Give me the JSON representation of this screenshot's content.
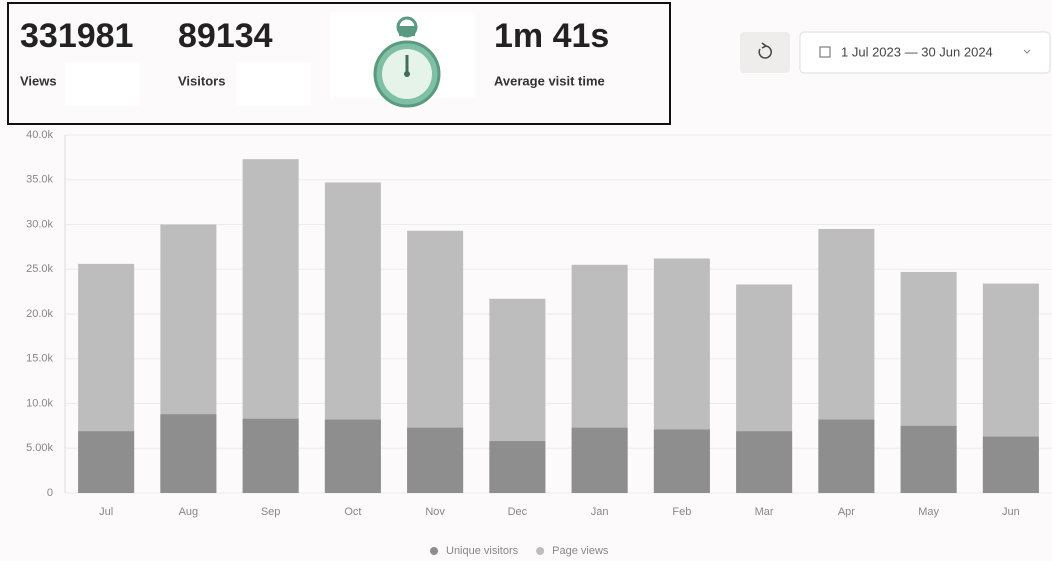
{
  "stats": [
    {
      "value": "331981",
      "label": "Views"
    },
    {
      "value": "89134",
      "label": "Visitors"
    },
    {
      "value": "1m 41s",
      "label": "Average visit time"
    }
  ],
  "date_range": "1 Jul 2023 — 30 Jun 2024",
  "chart_data": {
    "type": "bar",
    "categories": [
      "Jul",
      "Aug",
      "Sep",
      "Oct",
      "Nov",
      "Dec",
      "Jan",
      "Feb",
      "Mar",
      "Apr",
      "May",
      "Jun"
    ],
    "series": [
      {
        "name": "Unique visitors",
        "color": "#8e8e8e",
        "values": [
          6900,
          8800,
          8300,
          8200,
          7300,
          5800,
          7300,
          7100,
          6900,
          8200,
          7500,
          6300
        ]
      },
      {
        "name": "Page views",
        "color": "#bdbdbd",
        "values": [
          25600,
          30000,
          37300,
          34700,
          29300,
          21700,
          25500,
          26200,
          23300,
          29500,
          24700,
          23400
        ]
      }
    ],
    "ylim": [
      0,
      40000
    ],
    "yticks": [
      0,
      {
        "value": 5000,
        "label": "5.00k"
      },
      {
        "value": 10000,
        "label": "10.0k"
      },
      {
        "value": 15000,
        "label": "15.0k"
      },
      {
        "value": 20000,
        "label": "20.0k"
      },
      {
        "value": 25000,
        "label": "25.0k"
      },
      {
        "value": 30000,
        "label": "30.0k"
      },
      {
        "value": 35000,
        "label": "35.0k"
      },
      {
        "value": 40000,
        "label": "40.0k"
      }
    ],
    "grid": true,
    "overlap": true
  }
}
